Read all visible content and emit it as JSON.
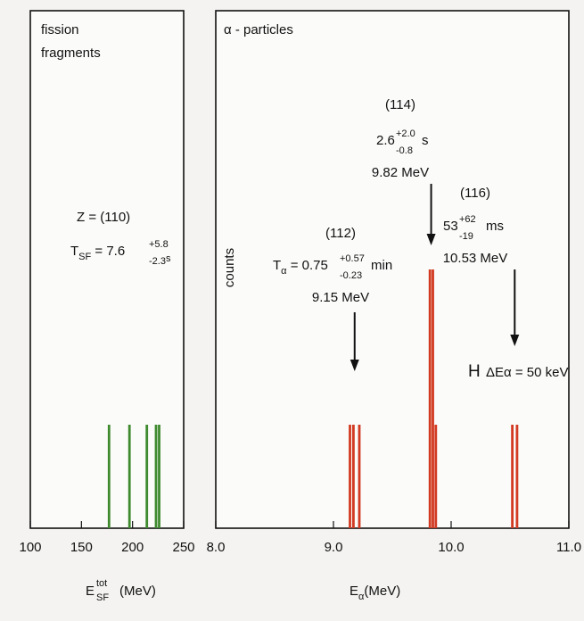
{
  "chart_data": [
    {
      "type": "bar",
      "panel_label": [
        "fission",
        "fragments"
      ],
      "annotation": {
        "z_label": "Z = (110)",
        "t_main": "T",
        "t_sub": "SF",
        "t_eq": " = 7.6",
        "t_sup": "+5.8",
        "t_low": "-2.3",
        "t_unit": "s"
      },
      "xlabel": {
        "main": "E",
        "sup": "tot",
        "sub": "SF",
        "unit": "(MeV)"
      },
      "xlim": [
        100,
        250
      ],
      "xticks": [
        100,
        150,
        200,
        250
      ],
      "xtick_labels": [
        "100",
        "150",
        "200",
        "250"
      ],
      "ylim": [
        0,
        1
      ],
      "bars": [
        {
          "x": 177,
          "value": 0.2
        },
        {
          "x": 197,
          "value": 0.2
        },
        {
          "x": 214,
          "value": 0.2
        },
        {
          "x": 223,
          "value": 0.2
        },
        {
          "x": 226,
          "value": 0.2
        }
      ],
      "colors": {
        "bar": "#3f8a2e"
      }
    },
    {
      "type": "bar",
      "panel_label": "α - particles",
      "ylabel": "counts",
      "xlabel": {
        "main": "E",
        "sub": "α",
        "unit": "(MeV)"
      },
      "xlim": [
        8.0,
        11.0
      ],
      "xticks": [
        8.0,
        9.0,
        10.0,
        11.0
      ],
      "xtick_labels": [
        "8.0",
        "9.0",
        "10.0",
        "11.0"
      ],
      "ylim": [
        0,
        1
      ],
      "bars": [
        {
          "x": 9.14,
          "value": 0.2
        },
        {
          "x": 9.17,
          "value": 0.2
        },
        {
          "x": 9.22,
          "value": 0.2
        },
        {
          "x": 9.82,
          "value": 0.5
        },
        {
          "x": 9.845,
          "value": 0.5
        },
        {
          "x": 9.87,
          "value": 0.2
        },
        {
          "x": 10.52,
          "value": 0.2
        },
        {
          "x": 10.56,
          "value": 0.2
        }
      ],
      "annotations": [
        {
          "label": "(112)",
          "half_life": {
            "main": "T",
            "sub": "α",
            "eq": " = 0.75",
            "sup": "+0.57",
            "low": "-0.23",
            "unit": "min"
          },
          "energy": "9.15 MeV",
          "arrow_x": 9.18
        },
        {
          "label": "(114)",
          "half_life": {
            "main": "",
            "sub": "",
            "eq": "2.6",
            "sup": "+2.0",
            "low": "-0.8",
            "unit": "s"
          },
          "energy": "9.82 MeV",
          "arrow_x": 9.83
        },
        {
          "label": "(116)",
          "half_life": {
            "main": "",
            "sub": "",
            "eq": "53",
            "sup": "+62",
            "low": "-19",
            "unit": "ms"
          },
          "energy": "10.53 MeV",
          "arrow_x": 10.54
        }
      ],
      "resolution": {
        "symbol": "H",
        "label": "ΔEα = 50 keV"
      },
      "colors": {
        "bar": "#d23a22"
      }
    }
  ]
}
